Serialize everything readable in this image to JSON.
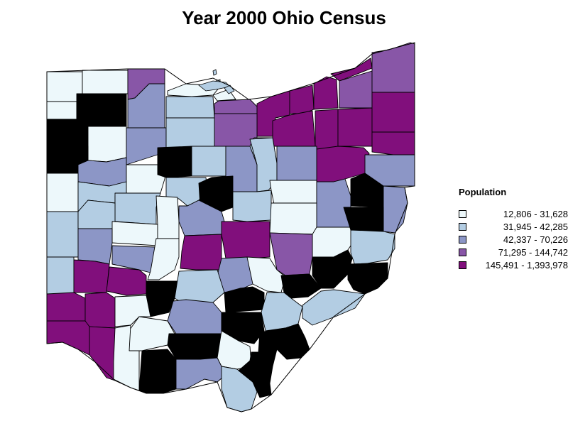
{
  "title": "Year 2000 Ohio Census",
  "legend": {
    "title": "Population",
    "classes": [
      {
        "label": "12,806 - 31,628",
        "color": "#edf8fb"
      },
      {
        "label": "31,945 - 42,285",
        "color": "#b3cde3"
      },
      {
        "label": "42,337 - 70,226",
        "color": "#8c96c6"
      },
      {
        "label": "71,295 - 144,742",
        "color": "#8856a7"
      },
      {
        "label": "145,491 - 1,393,978",
        "color": "#810f7c"
      }
    ]
  },
  "map": {
    "region": "Ohio",
    "units": "counties",
    "counties_shown": 88,
    "class_counts": [
      18,
      18,
      18,
      18,
      16
    ]
  }
}
